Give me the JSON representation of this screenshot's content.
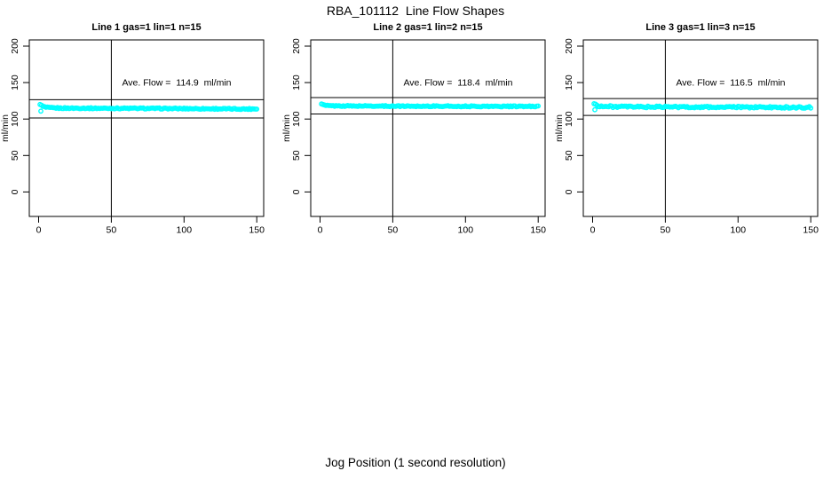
{
  "title": "RBA_101112  Line Flow Shapes",
  "xlabel": "Jog Position (1 second resolution)",
  "colors": {
    "points": "#00FFFF",
    "axis": "#000000",
    "background": "#FFFFFF"
  },
  "chart_data": [
    {
      "type": "scatter",
      "title": "Line 1 gas=1 lin=1 n=15",
      "ylabel": "ml/min",
      "annotation": "Ave. Flow =  114.9  ml/min",
      "ave_flow": 114.9,
      "x_ticks": [
        0,
        50,
        100,
        150
      ],
      "y_ticks": [
        0,
        50,
        100,
        150,
        200
      ],
      "xlim": [
        -6,
        156
      ],
      "ylim": [
        -34,
        209
      ],
      "vline_x": 50,
      "ref_high": 126.5,
      "ref_low": 101.5,
      "n_points": 150,
      "band_profile": [
        [
          0,
          121.5
        ],
        [
          1,
          120.5
        ],
        [
          2,
          118.5
        ],
        [
          3,
          117.2
        ],
        [
          5,
          116.0
        ],
        [
          8,
          115.4
        ],
        [
          15,
          115.0
        ],
        [
          40,
          114.8
        ],
        [
          70,
          114.6
        ],
        [
          110,
          114.2
        ],
        [
          140,
          113.8
        ],
        [
          150,
          113.9
        ]
      ],
      "outliers": [
        [
          1.5,
          110.8
        ]
      ],
      "jitter": 0.75
    },
    {
      "type": "scatter",
      "title": "Line 2 gas=1 lin=2 n=15",
      "ylabel": "ml/min",
      "annotation": "Ave. Flow =  118.4  ml/min",
      "ave_flow": 118.4,
      "x_ticks": [
        0,
        50,
        100,
        150
      ],
      "y_ticks": [
        0,
        50,
        100,
        150,
        200
      ],
      "xlim": [
        -6,
        156
      ],
      "ylim": [
        -34,
        209
      ],
      "vline_x": 50,
      "ref_high": 129.5,
      "ref_low": 107.0,
      "n_points": 150,
      "band_profile": [
        [
          0,
          121.8
        ],
        [
          2,
          119.5
        ],
        [
          4,
          118.6
        ],
        [
          8,
          118.1
        ],
        [
          20,
          117.9
        ],
        [
          60,
          117.7
        ],
        [
          100,
          117.5
        ],
        [
          140,
          117.3
        ],
        [
          150,
          117.4
        ]
      ],
      "outliers": [],
      "jitter": 0.7
    },
    {
      "type": "scatter",
      "title": "Line 3 gas=1 lin=3 n=15",
      "ylabel": "ml/min",
      "annotation": "Ave. Flow =  116.5  ml/min",
      "ave_flow": 116.5,
      "x_ticks": [
        0,
        50,
        100,
        150
      ],
      "y_ticks": [
        0,
        50,
        100,
        150,
        200
      ],
      "xlim": [
        -6,
        156
      ],
      "ylim": [
        -34,
        209
      ],
      "vline_x": 50,
      "ref_high": 128.0,
      "ref_low": 105.0,
      "n_points": 150,
      "band_profile": [
        [
          0,
          123.0
        ],
        [
          1,
          121.5
        ],
        [
          2,
          119.8
        ],
        [
          4,
          118.0
        ],
        [
          8,
          117.2
        ],
        [
          20,
          116.8
        ],
        [
          60,
          116.5
        ],
        [
          100,
          116.3
        ],
        [
          140,
          115.9
        ],
        [
          150,
          116.0
        ]
      ],
      "outliers": [
        [
          1.5,
          112.8
        ]
      ],
      "jitter": 1.15
    }
  ]
}
